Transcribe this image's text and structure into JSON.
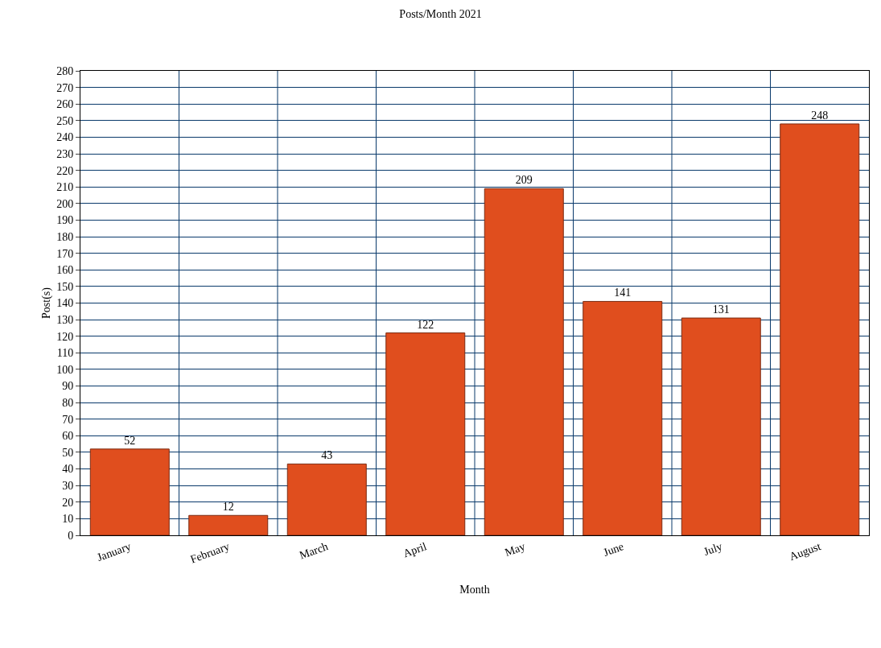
{
  "chart_data": {
    "type": "bar",
    "title": "Posts/Month 2021",
    "xlabel": "Month",
    "ylabel": "Post(s)",
    "categories": [
      "January",
      "February",
      "March",
      "April",
      "May",
      "June",
      "July",
      "August"
    ],
    "values": [
      52,
      12,
      43,
      122,
      209,
      141,
      131,
      248
    ],
    "color": "#e04e1e",
    "ylim": [
      0,
      280
    ],
    "yticks": [
      0,
      10,
      20,
      30,
      40,
      50,
      60,
      70,
      80,
      90,
      100,
      110,
      120,
      130,
      140,
      150,
      160,
      170,
      180,
      190,
      200,
      210,
      220,
      230,
      240,
      250,
      260,
      270,
      280
    ],
    "grid": true,
    "data_labels": true,
    "legend": false
  }
}
